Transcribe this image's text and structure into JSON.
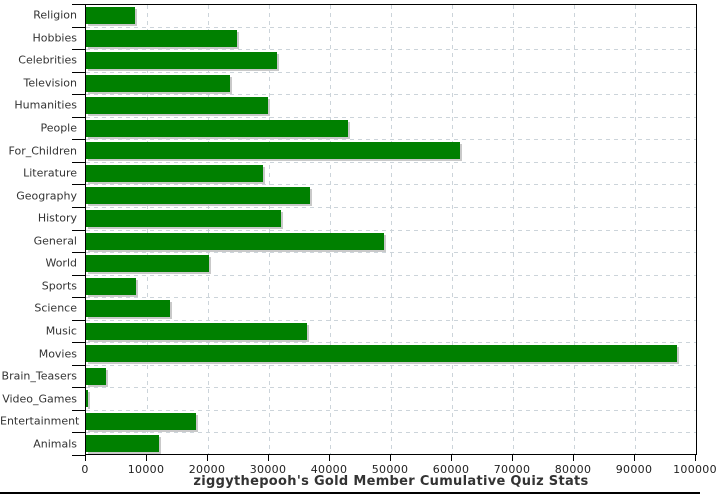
{
  "title": "ziggythepooh's Gold Member Cumulative Quiz Stats",
  "chart_data": {
    "type": "bar",
    "orientation": "horizontal",
    "title": "ziggythepooh's Gold Member Cumulative Quiz Stats",
    "categories": [
      "Religion",
      "Hobbies",
      "Celebrities",
      "Television",
      "Humanities",
      "People",
      "For_Children",
      "Literature",
      "Geography",
      "History",
      "General",
      "World",
      "Sports",
      "Science",
      "Music",
      "Movies",
      "Brain_Teasers",
      "Video_Games",
      "Entertainment",
      "Animals"
    ],
    "values": [
      8000,
      24800,
      31300,
      23600,
      29800,
      43000,
      61300,
      29000,
      36700,
      31900,
      48900,
      20100,
      8200,
      13800,
      36200,
      96900,
      3300,
      400,
      18100,
      11900
    ],
    "xlim": [
      0,
      100000
    ],
    "x_ticks": [
      0,
      10000,
      20000,
      30000,
      40000,
      50000,
      60000,
      70000,
      80000,
      90000,
      100000
    ],
    "x_tick_labels": [
      "0",
      "10000",
      "20000",
      "30000",
      "40000",
      "50000",
      "60000",
      "70000",
      "80000",
      "90000",
      "100000"
    ],
    "grid": "dashed",
    "legend_position": "none",
    "colors": {
      "bar": "#008000",
      "bar_shadow": "#c9c9c9",
      "grid": "#ccd4da",
      "axis": "#000000",
      "label_text": "#333333"
    }
  }
}
